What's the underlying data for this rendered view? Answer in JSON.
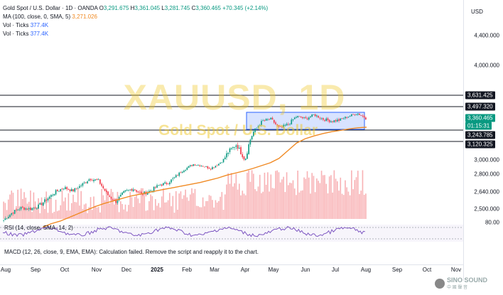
{
  "legend": {
    "symbol": "Gold Spot / U.S. Dollar · 1D · OANDA",
    "open_label": "O",
    "open": "3,291.675",
    "high_label": "H",
    "high": "3,361.045",
    "low_label": "L",
    "low": "3,281.745",
    "close_label": "C",
    "close": "3,360.465",
    "change": "+70.345 (+2.14%)",
    "ma_label": "MA (100, close, 0, SMA, 5)",
    "ma_value": "3,271.026",
    "vol1_label": "Vol · Ticks",
    "vol1_value": "377.4K",
    "vol2_label": "Vol · Ticks",
    "vol2_value": "377.4K"
  },
  "watermark": {
    "ticker": "XAUUSD, 1D",
    "name": "Gold Spot / U.S. Dollar"
  },
  "price_axis": {
    "currency": "USD",
    "ticks": [
      "4,400.000",
      "4,000.000",
      "3,000.000",
      "2,800.000",
      "2,640.000",
      "2,500.000"
    ],
    "levels": [
      "3,631.425",
      "3,497.320",
      "3,243.785",
      "3,120.325"
    ],
    "current_price": "3,360.465",
    "countdown": "01:15:31"
  },
  "rsi": {
    "label": "RSI (14, close, SMA, 14, 2)",
    "axis_value": "80.00"
  },
  "macd": {
    "message": "MACD (12, 26, close, 9, EMA, EMA): Calculation failed. Remove the script and reapply it to the chart."
  },
  "time_axis": {
    "labels": [
      "Aug",
      "Sep",
      "Oct",
      "Nov",
      "Dec",
      "2025",
      "Feb",
      "Mar",
      "Apr",
      "May",
      "Jun",
      "Jul",
      "Aug",
      "Sep",
      "Oct",
      "Nov"
    ]
  },
  "brand": {
    "name": "SINO SOUND",
    "sub": "中 國 聲 音"
  },
  "colors": {
    "up": "#089981",
    "down": "#f23645",
    "ma": "#f08a24",
    "volume": "#f7a5a8",
    "rsi": "#7e57c2",
    "zone": "#2962ff"
  },
  "chart_data": {
    "type": "candlestick",
    "title": "XAUUSD, 1D",
    "x_range": [
      "2024-08",
      "2025-11"
    ],
    "ylim": [
      2450,
      4450
    ],
    "close_series": [
      2410,
      2470,
      2510,
      2500,
      2520,
      2580,
      2640,
      2680,
      2650,
      2700,
      2760,
      2740,
      2620,
      2560,
      2640,
      2670,
      2620,
      2650,
      2700,
      2720,
      2780,
      2870,
      2940,
      2920,
      2880,
      2950,
      3050,
      3100,
      3000,
      3230,
      3330,
      3350,
      3260,
      3300,
      3380,
      3350,
      3400,
      3350,
      3330,
      3340,
      3380,
      3420,
      3360
    ],
    "ma_series": [
      2350,
      2380,
      2400,
      2430,
      2460,
      2490,
      2520,
      2545,
      2565,
      2585,
      2605,
      2620,
      2635,
      2650,
      2665,
      2680,
      2695,
      2710,
      2725,
      2745,
      2765,
      2790,
      2815,
      2845,
      2880,
      2920,
      2960,
      3010,
      3060,
      3110,
      3150,
      3180,
      3205,
      3225,
      3240,
      3255,
      3265,
      3271
    ]
  }
}
